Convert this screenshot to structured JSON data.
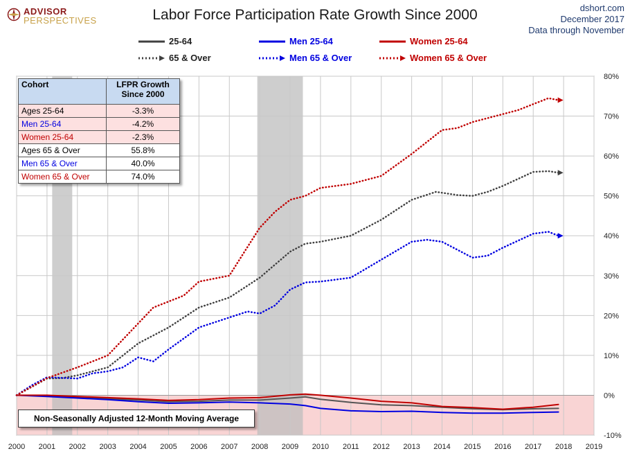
{
  "header": {
    "title": "Labor Force Participation Rate Growth Since 2000",
    "logo_line1": "ADVISOR",
    "logo_line2": "PERSPECTIVES",
    "source_line1": "dshort.com",
    "source_line2": "December 2017",
    "source_line3": "Data through November"
  },
  "legend": [
    {
      "label": "25-64",
      "color": "#404040",
      "style": "solid"
    },
    {
      "label": "Men 25-64",
      "color": "#0000e0",
      "style": "solid"
    },
    {
      "label": "Women 25-64",
      "color": "#c00000",
      "style": "solid"
    },
    {
      "label": "65 & Over",
      "color": "#404040",
      "style": "dotted"
    },
    {
      "label": "Men 65 & Over",
      "color": "#0000e0",
      "style": "dotted"
    },
    {
      "label": "Women 65 & Over",
      "color": "#c00000",
      "style": "dotted"
    }
  ],
  "table": {
    "header_col1": "Cohort",
    "header_col2": "LFPR Growth Since 2000",
    "rows": [
      {
        "label": "Ages 25-64",
        "value": "-3.3%",
        "color": "#000000",
        "bg": "#fde0e0"
      },
      {
        "label": "Men 25-64",
        "value": "-4.2%",
        "color": "#0000e0",
        "bg": "#fde0e0"
      },
      {
        "label": "Women 25-64",
        "value": "-2.3%",
        "color": "#c00000",
        "bg": "#fde0e0"
      },
      {
        "label": "Ages 65  & Over",
        "value": "55.8%",
        "color": "#000000",
        "bg": "#ffffff"
      },
      {
        "label": "Men 65  & Over",
        "value": "40.0%",
        "color": "#0000e0",
        "bg": "#ffffff"
      },
      {
        "label": "Women 65 & Over",
        "value": "74.0%",
        "color": "#c00000",
        "bg": "#ffffff"
      }
    ]
  },
  "note": "Non-Seasonally Adjusted 12-Month Moving Average",
  "chart_data": {
    "type": "line",
    "x_ticks": [
      "2000",
      "2001",
      "2002",
      "2003",
      "2004",
      "2005",
      "2006",
      "2007",
      "2008",
      "2009",
      "2010",
      "2011",
      "2012",
      "2013",
      "2014",
      "2015",
      "2016",
      "2017",
      "2018",
      "2019"
    ],
    "y_ticks": [
      "-10%",
      "0%",
      "10%",
      "20%",
      "30%",
      "40%",
      "50%",
      "60%",
      "70%",
      "80%"
    ],
    "xlim": [
      2000,
      2019
    ],
    "ylim": [
      -10,
      80
    ],
    "recessions": [
      [
        2001.17,
        2001.83
      ],
      [
        2007.92,
        2009.42
      ]
    ],
    "negative_band_color": "#f9d4d4",
    "grid": true,
    "series": [
      {
        "name": "25-64",
        "color": "#555555",
        "style": "solid",
        "x": [
          2000,
          2001,
          2002,
          2003,
          2004,
          2005,
          2006,
          2007,
          2008,
          2009,
          2009.5,
          2010,
          2011,
          2012,
          2013,
          2014,
          2015,
          2016,
          2017,
          2017.83
        ],
        "y": [
          0,
          -0.1,
          -0.5,
          -0.9,
          -1.2,
          -1.6,
          -1.5,
          -1.2,
          -1.2,
          -0.7,
          -0.4,
          -1.0,
          -1.8,
          -2.4,
          -2.6,
          -3.0,
          -3.4,
          -3.6,
          -3.4,
          -3.3
        ]
      },
      {
        "name": "Men 25-64",
        "color": "#0000e0",
        "style": "solid",
        "x": [
          2000,
          2001,
          2002,
          2003,
          2004,
          2005,
          2006,
          2007,
          2008,
          2009,
          2009.5,
          2010,
          2011,
          2012,
          2013,
          2014,
          2015,
          2016,
          2017,
          2017.83
        ],
        "y": [
          0,
          -0.3,
          -0.7,
          -1.1,
          -1.6,
          -2.0,
          -1.9,
          -1.7,
          -1.9,
          -2.2,
          -2.6,
          -3.3,
          -3.9,
          -4.1,
          -4.0,
          -4.3,
          -4.5,
          -4.5,
          -4.3,
          -4.2
        ]
      },
      {
        "name": "Women 25-64",
        "color": "#c00000",
        "style": "solid",
        "x": [
          2000,
          2001,
          2002,
          2003,
          2004,
          2005,
          2006,
          2007,
          2008,
          2009,
          2009.5,
          2010,
          2011,
          2012,
          2013,
          2014,
          2015,
          2016,
          2017,
          2017.83
        ],
        "y": [
          0,
          0.0,
          -0.3,
          -0.6,
          -0.9,
          -1.3,
          -1.1,
          -0.7,
          -0.6,
          0.1,
          0.3,
          0.0,
          -0.7,
          -1.5,
          -1.9,
          -2.8,
          -3.1,
          -3.5,
          -3.0,
          -2.3
        ]
      },
      {
        "name": "65 & Over",
        "color": "#404040",
        "style": "dotted",
        "x": [
          2000,
          2001,
          2001.5,
          2002,
          2003,
          2003.5,
          2004,
          2005,
          2006,
          2007,
          2008,
          2009,
          2009.5,
          2010,
          2011,
          2012,
          2013,
          2013.8,
          2014.5,
          2015,
          2015.5,
          2016,
          2017,
          2017.5,
          2017.83
        ],
        "y": [
          0,
          4.2,
          4.3,
          5.0,
          7.0,
          10.0,
          13.0,
          17.0,
          22.0,
          24.5,
          29.5,
          36.0,
          38.0,
          38.5,
          40.0,
          44.0,
          49.0,
          51.0,
          50.2,
          50.0,
          51.0,
          52.5,
          56.0,
          56.2,
          55.8
        ]
      },
      {
        "name": "Men 65 & Over",
        "color": "#0000e0",
        "style": "dotted",
        "x": [
          2000,
          2000.5,
          2001,
          2002,
          2002.5,
          2003,
          2003.5,
          2004,
          2004.5,
          2005,
          2006,
          2007,
          2007.6,
          2008,
          2008.5,
          2009,
          2009.5,
          2010,
          2011,
          2012,
          2013,
          2013.5,
          2014,
          2014.5,
          2015,
          2015.5,
          2016,
          2017,
          2017.5,
          2017.83
        ],
        "y": [
          0,
          2.5,
          4.5,
          4.2,
          5.5,
          6.0,
          7.0,
          9.5,
          8.5,
          11.5,
          17.0,
          19.5,
          21.0,
          20.5,
          22.5,
          26.5,
          28.3,
          28.5,
          29.5,
          34.0,
          38.5,
          39.0,
          38.5,
          36.5,
          34.5,
          35.0,
          37.0,
          40.5,
          41.0,
          40.0
        ]
      },
      {
        "name": "Women 65 & Over",
        "color": "#c00000",
        "style": "dotted",
        "x": [
          2000,
          2001,
          2002,
          2003,
          2004,
          2004.5,
          2005,
          2005.5,
          2006,
          2007,
          2007.5,
          2008,
          2008.5,
          2009,
          2009.5,
          2010,
          2010.5,
          2011,
          2012,
          2013,
          2014,
          2014.5,
          2015,
          2016,
          2016.5,
          2017,
          2017.5,
          2017.83
        ],
        "y": [
          0,
          4.3,
          7.0,
          10.0,
          18.0,
          22.0,
          23.5,
          25.0,
          28.5,
          30.0,
          36.0,
          42.0,
          46.0,
          49.0,
          50.0,
          52.0,
          52.5,
          53.0,
          55.0,
          60.5,
          66.5,
          67.0,
          68.5,
          70.5,
          71.5,
          73.0,
          74.5,
          74.0
        ]
      }
    ]
  }
}
